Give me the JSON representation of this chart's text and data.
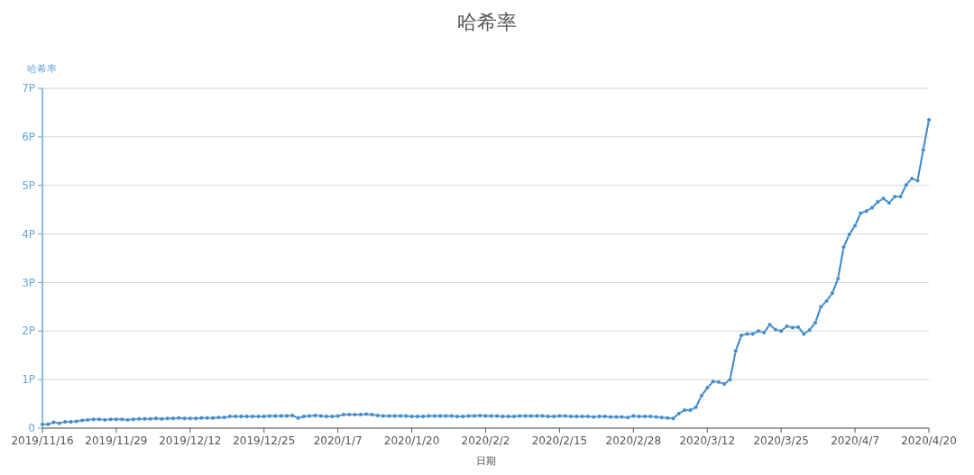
{
  "chart_data": {
    "type": "line",
    "title": "哈希率",
    "ylabel": "哈希率",
    "xlabel": "日期",
    "x": [
      "2019-11-16",
      "2019-11-17",
      "2019-11-18",
      "2019-11-19",
      "2019-11-20",
      "2019-11-21",
      "2019-11-22",
      "2019-11-23",
      "2019-11-24",
      "2019-11-25",
      "2019-11-26",
      "2019-11-27",
      "2019-11-28",
      "2019-11-29",
      "2019-11-30",
      "2019-12-01",
      "2019-12-02",
      "2019-12-03",
      "2019-12-04",
      "2019-12-05",
      "2019-12-06",
      "2019-12-07",
      "2019-12-08",
      "2019-12-09",
      "2019-12-10",
      "2019-12-11",
      "2019-12-12",
      "2019-12-13",
      "2019-12-14",
      "2019-12-15",
      "2019-12-16",
      "2019-12-17",
      "2019-12-18",
      "2019-12-19",
      "2019-12-20",
      "2019-12-21",
      "2019-12-22",
      "2019-12-23",
      "2019-12-24",
      "2019-12-25",
      "2019-12-26",
      "2019-12-27",
      "2019-12-28",
      "2019-12-29",
      "2019-12-30",
      "2019-12-31",
      "2020-01-01",
      "2020-01-02",
      "2020-01-03",
      "2020-01-04",
      "2020-01-05",
      "2020-01-06",
      "2020-01-07",
      "2020-01-08",
      "2020-01-09",
      "2020-01-10",
      "2020-01-11",
      "2020-01-12",
      "2020-01-13",
      "2020-01-14",
      "2020-01-15",
      "2020-01-16",
      "2020-01-17",
      "2020-01-18",
      "2020-01-19",
      "2020-01-20",
      "2020-01-21",
      "2020-01-22",
      "2020-01-23",
      "2020-01-24",
      "2020-01-25",
      "2020-01-26",
      "2020-01-27",
      "2020-01-28",
      "2020-01-29",
      "2020-01-30",
      "2020-01-31",
      "2020-02-01",
      "2020-02-02",
      "2020-02-03",
      "2020-02-04",
      "2020-02-05",
      "2020-02-06",
      "2020-02-07",
      "2020-02-08",
      "2020-02-09",
      "2020-02-10",
      "2020-02-11",
      "2020-02-12",
      "2020-02-13",
      "2020-02-14",
      "2020-02-15",
      "2020-02-16",
      "2020-02-17",
      "2020-02-18",
      "2020-02-19",
      "2020-02-20",
      "2020-02-21",
      "2020-02-22",
      "2020-02-23",
      "2020-02-24",
      "2020-02-25",
      "2020-02-26",
      "2020-02-27",
      "2020-02-28",
      "2020-02-29",
      "2020-03-01",
      "2020-03-02",
      "2020-03-03",
      "2020-03-04",
      "2020-03-05",
      "2020-03-06",
      "2020-03-07",
      "2020-03-08",
      "2020-03-09",
      "2020-03-10",
      "2020-03-11",
      "2020-03-12",
      "2020-03-13",
      "2020-03-14",
      "2020-03-15",
      "2020-03-16",
      "2020-03-17",
      "2020-03-18",
      "2020-03-19",
      "2020-03-20",
      "2020-03-21",
      "2020-03-22",
      "2020-03-23",
      "2020-03-24",
      "2020-03-25",
      "2020-03-26",
      "2020-03-27",
      "2020-03-28",
      "2020-03-29",
      "2020-03-30",
      "2020-03-31",
      "2020-04-01",
      "2020-04-02",
      "2020-04-03",
      "2020-04-04",
      "2020-04-05",
      "2020-04-06",
      "2020-04-07",
      "2020-04-08",
      "2020-04-09",
      "2020-04-10",
      "2020-04-11",
      "2020-04-12",
      "2020-04-13",
      "2020-04-14",
      "2020-04-15",
      "2020-04-16",
      "2020-04-17",
      "2020-04-18",
      "2020-04-19",
      "2020-04-20"
    ],
    "series": [
      {
        "color": "#3a87c8",
        "values": [
          0.08,
          0.08,
          0.12,
          0.1,
          0.13,
          0.13,
          0.14,
          0.16,
          0.17,
          0.18,
          0.18,
          0.17,
          0.18,
          0.18,
          0.18,
          0.17,
          0.18,
          0.19,
          0.19,
          0.19,
          0.2,
          0.19,
          0.2,
          0.2,
          0.21,
          0.2,
          0.2,
          0.2,
          0.21,
          0.21,
          0.21,
          0.22,
          0.22,
          0.24,
          0.24,
          0.24,
          0.24,
          0.24,
          0.24,
          0.24,
          0.25,
          0.25,
          0.25,
          0.25,
          0.26,
          0.21,
          0.24,
          0.25,
          0.26,
          0.25,
          0.24,
          0.24,
          0.25,
          0.28,
          0.28,
          0.28,
          0.28,
          0.29,
          0.28,
          0.26,
          0.25,
          0.25,
          0.25,
          0.25,
          0.25,
          0.24,
          0.24,
          0.24,
          0.25,
          0.25,
          0.25,
          0.25,
          0.25,
          0.24,
          0.24,
          0.25,
          0.25,
          0.26,
          0.25,
          0.25,
          0.25,
          0.24,
          0.24,
          0.24,
          0.25,
          0.25,
          0.25,
          0.25,
          0.25,
          0.24,
          0.24,
          0.25,
          0.25,
          0.24,
          0.24,
          0.24,
          0.24,
          0.23,
          0.24,
          0.24,
          0.23,
          0.23,
          0.23,
          0.22,
          0.25,
          0.24,
          0.24,
          0.24,
          0.23,
          0.22,
          0.21,
          0.2,
          0.3,
          0.37,
          0.37,
          0.43,
          0.67,
          0.83,
          0.96,
          0.95,
          0.91,
          1.0,
          1.59,
          1.91,
          1.94,
          1.94,
          2.0,
          1.97,
          2.13,
          2.03,
          2.0,
          2.1,
          2.07,
          2.08,
          1.94,
          2.02,
          2.17,
          2.5,
          2.62,
          2.78,
          3.08,
          3.73,
          3.99,
          4.17,
          4.43,
          4.47,
          4.54,
          4.66,
          4.73,
          4.64,
          4.77,
          4.77,
          5.01,
          5.14,
          5.1,
          5.73,
          6.35
        ]
      }
    ],
    "xlim": [
      "2019-11-16",
      "2020-04-20"
    ],
    "xticks": [
      {
        "value": "2019-11-16",
        "label": "2019/11/16"
      },
      {
        "value": "2019-11-29",
        "label": "2019/11/29"
      },
      {
        "value": "2019-12-12",
        "label": "2019/12/12"
      },
      {
        "value": "2019-12-25",
        "label": "2019/12/25"
      },
      {
        "value": "2020-01-07",
        "label": "2020/1/7"
      },
      {
        "value": "2020-01-20",
        "label": "2020/1/20"
      },
      {
        "value": "2020-02-02",
        "label": "2020/2/2"
      },
      {
        "value": "2020-02-15",
        "label": "2020/2/15"
      },
      {
        "value": "2020-02-28",
        "label": "2020/2/28"
      },
      {
        "value": "2020-03-12",
        "label": "2020/3/12"
      },
      {
        "value": "2020-03-25",
        "label": "2020/3/25"
      },
      {
        "value": "2020-04-07",
        "label": "2020/4/7"
      },
      {
        "value": "2020-04-20",
        "label": "2020/4/20"
      }
    ],
    "ylim": [
      0,
      7
    ],
    "yticks": [
      0,
      {
        "value": 1,
        "label": "1P"
      },
      {
        "value": 2,
        "label": "2P"
      },
      {
        "value": 3,
        "label": "3P"
      },
      {
        "value": 4,
        "label": "4P"
      },
      {
        "value": 5,
        "label": "5P"
      },
      {
        "value": 6,
        "label": "6P"
      },
      {
        "value": 7,
        "label": "7P"
      }
    ],
    "grid": "y",
    "marker": "circle",
    "line_style": "solid"
  }
}
